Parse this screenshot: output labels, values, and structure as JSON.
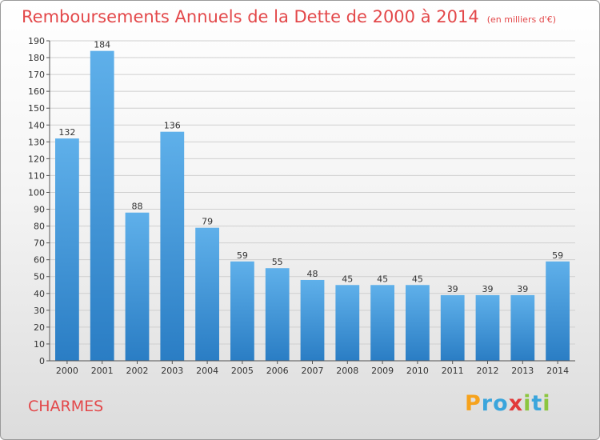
{
  "header": {
    "title": "Remboursements Annuels de la Dette de 2000 à 2014",
    "subtitle": "(en milliers d'€)"
  },
  "footer": {
    "commune": "CHARMES",
    "logo": {
      "letters": [
        "P",
        "r",
        "o",
        "x",
        "i",
        "t",
        "i"
      ],
      "colors": [
        "#f6a21c",
        "#3aa5dc",
        "#3aa5dc",
        "#e23a3a",
        "#8cc63f",
        "#3aa5dc",
        "#8cc63f"
      ]
    }
  },
  "chart_data": {
    "type": "bar",
    "title": "Remboursements Annuels de la Dette de 2000 à 2014",
    "subtitle": "(en milliers d'€)",
    "categories": [
      "2000",
      "2001",
      "2002",
      "2003",
      "2004",
      "2005",
      "2006",
      "2007",
      "2008",
      "2009",
      "2010",
      "2011",
      "2012",
      "2013",
      "2014"
    ],
    "values": [
      132,
      184,
      88,
      136,
      79,
      59,
      55,
      48,
      45,
      45,
      45,
      39,
      39,
      39,
      59
    ],
    "ylim": [
      0,
      190
    ],
    "ytick_step": 10,
    "grid": true,
    "bar_color_top": "#5fb0ea",
    "bar_color_bottom": "#2a7dc4",
    "grid_color": "#cfcfcf"
  }
}
